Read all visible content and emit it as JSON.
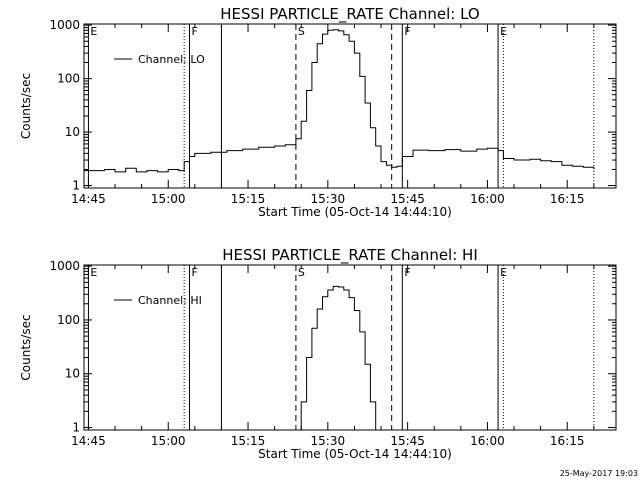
{
  "timestamp": "25-May-2017 19:03",
  "chart_data": [
    {
      "type": "line",
      "title": "HESSI PARTICLE_RATE Channel: LO",
      "xlabel": "Start Time (05-Oct-14 14:44:10)",
      "ylabel": "Counts/sec",
      "xlim": [
        "14:44:10",
        "16:24:10"
      ],
      "ylim": [
        0.9,
        1050
      ],
      "y_scale": "log",
      "x_ticks": [
        "14:45",
        "15:00",
        "15:15",
        "15:30",
        "15:45",
        "16:00",
        "16:15"
      ],
      "y_ticks": [
        {
          "value": 1,
          "label": "1"
        },
        {
          "value": 10,
          "label": "10"
        },
        {
          "value": 100,
          "label": "100"
        },
        {
          "value": 1000,
          "label": "1000"
        }
      ],
      "legend": {
        "position": "top-left",
        "entries": [
          "Channel: LO"
        ]
      },
      "markers": [
        {
          "time": "14:45",
          "label": "E",
          "style": "solid"
        },
        {
          "time": "15:03",
          "label": "",
          "style": "dotted"
        },
        {
          "time": "15:04",
          "label": "F",
          "style": "solid"
        },
        {
          "time": "15:10",
          "label": "",
          "style": "solid"
        },
        {
          "time": "15:24",
          "label": "S",
          "style": "dashed"
        },
        {
          "time": "15:42",
          "label": "",
          "style": "dashed"
        },
        {
          "time": "15:44",
          "label": "F",
          "style": "solid"
        },
        {
          "time": "16:02",
          "label": "E",
          "style": "solid"
        },
        {
          "time": "16:03",
          "label": "",
          "style": "dotted"
        },
        {
          "time": "16:20",
          "label": "",
          "style": "dotted"
        }
      ],
      "series": [
        {
          "name": "Channel: LO",
          "x": [
            "14:44",
            "14:48",
            "14:50",
            "14:52",
            "14:54",
            "14:56",
            "14:58",
            "15:00",
            "15:02",
            "15:03",
            "15:04",
            "15:05",
            "15:08",
            "15:11",
            "15:14",
            "15:17",
            "15:20",
            "15:22",
            "15:24",
            "15:25",
            "15:26",
            "15:27",
            "15:28",
            "15:29",
            "15:30",
            "15:31",
            "15:32",
            "15:33",
            "15:34",
            "15:35",
            "15:36",
            "15:37",
            "15:38",
            "15:39",
            "15:40",
            "15:41",
            "15:42",
            "15:43",
            "15:44",
            "15:46",
            "15:49",
            "15:52",
            "15:55",
            "15:58",
            "16:00",
            "16:02",
            "16:03",
            "16:05",
            "16:08",
            "16:10",
            "16:12",
            "16:14",
            "16:16",
            "16:18",
            "16:20"
          ],
          "y": [
            1.9,
            2.0,
            1.8,
            2.1,
            1.8,
            1.9,
            1.8,
            2.0,
            1.9,
            2.8,
            3.5,
            4.0,
            4.2,
            4.5,
            4.8,
            5.2,
            5.5,
            5.8,
            7.5,
            16,
            60,
            200,
            450,
            680,
            800,
            820,
            780,
            660,
            500,
            300,
            110,
            35,
            12,
            5.5,
            2.8,
            2.4,
            2.2,
            2.3,
            3.5,
            4.6,
            4.5,
            4.7,
            4.4,
            4.8,
            5.0,
            4.5,
            3.2,
            3.0,
            3.1,
            2.9,
            2.8,
            2.4,
            2.3,
            2.2,
            2.0
          ]
        }
      ]
    },
    {
      "type": "line",
      "title": "HESSI PARTICLE_RATE Channel: HI",
      "xlabel": "Start Time (05-Oct-14 14:44:10)",
      "ylabel": "Counts/sec",
      "xlim": [
        "14:44:10",
        "16:24:10"
      ],
      "ylim": [
        0.9,
        1050
      ],
      "y_scale": "log",
      "x_ticks": [
        "14:45",
        "15:00",
        "15:15",
        "15:30",
        "15:45",
        "16:00",
        "16:15"
      ],
      "y_ticks": [
        {
          "value": 1,
          "label": "1"
        },
        {
          "value": 10,
          "label": "10"
        },
        {
          "value": 100,
          "label": "100"
        },
        {
          "value": 1000,
          "label": "1000"
        }
      ],
      "legend": {
        "position": "top-left",
        "entries": [
          "Channel: HI"
        ]
      },
      "markers": [
        {
          "time": "14:45",
          "label": "E",
          "style": "solid"
        },
        {
          "time": "15:03",
          "label": "",
          "style": "dotted"
        },
        {
          "time": "15:04",
          "label": "F",
          "style": "solid"
        },
        {
          "time": "15:10",
          "label": "",
          "style": "solid"
        },
        {
          "time": "15:24",
          "label": "S",
          "style": "dashed"
        },
        {
          "time": "15:42",
          "label": "",
          "style": "dashed"
        },
        {
          "time": "15:44",
          "label": "F",
          "style": "solid"
        },
        {
          "time": "16:02",
          "label": "E",
          "style": "solid"
        },
        {
          "time": "16:03",
          "label": "",
          "style": "dotted"
        },
        {
          "time": "16:20",
          "label": "",
          "style": "dotted"
        }
      ],
      "series": [
        {
          "name": "Channel: HI",
          "x": [
            "15:24",
            "15:25",
            "15:26",
            "15:27",
            "15:28",
            "15:29",
            "15:30",
            "15:31",
            "15:32",
            "15:33",
            "15:34",
            "15:35",
            "15:36",
            "15:37",
            "15:38",
            "15:39"
          ],
          "y": [
            0.9,
            3,
            20,
            70,
            160,
            270,
            360,
            420,
            410,
            360,
            260,
            150,
            60,
            15,
            3,
            0.9
          ]
        }
      ]
    }
  ]
}
